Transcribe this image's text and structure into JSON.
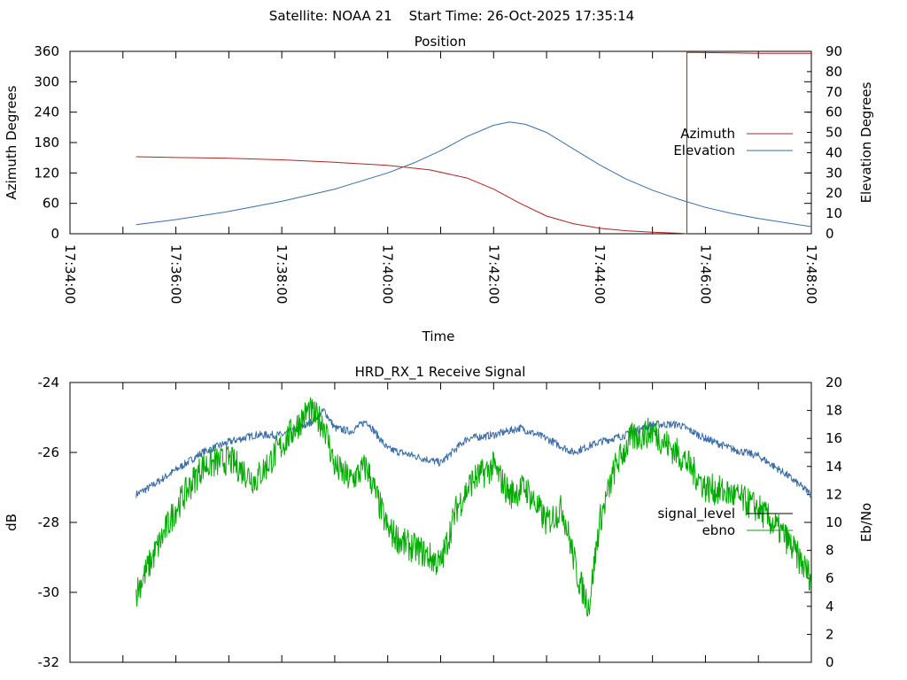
{
  "header": {
    "title": "Satellite: NOAA 21    Start Time: 26-Oct-2025 17:35:14"
  },
  "colors": {
    "azimuth": "#b22222",
    "elevation": "#3a6ea5",
    "signal_level": "#3a6ea5",
    "ebno": "#00aa00",
    "axes": "#000000"
  },
  "chart_data": [
    {
      "type": "line",
      "title": "Position",
      "xlabel": "Time",
      "ylabel": "Azimuth Degrees",
      "y2label": "Elevation Degrees",
      "xlim_minutes": [
        0,
        14
      ],
      "ylim": [
        0,
        360
      ],
      "y2lim": [
        0,
        90
      ],
      "yticks": [
        "0",
        "60",
        "120",
        "180",
        "240",
        "300",
        "360"
      ],
      "y2ticks": [
        "0",
        "10",
        "20",
        "30",
        "40",
        "50",
        "60",
        "70",
        "80",
        "90"
      ],
      "xtick_labels": [
        "17:34:00",
        "17:36:00",
        "17:38:00",
        "17:40:00",
        "17:42:00",
        "17:44:00",
        "17:46:00",
        "17:48:00"
      ],
      "legend_position": "right",
      "series": [
        {
          "name": "Azimuth",
          "axis": "y",
          "x": [
            1.25,
            2,
            3,
            4,
            5,
            6,
            6.8,
            7.5,
            8,
            8.5,
            9,
            9.5,
            10,
            10.5,
            11,
            11.5,
            11.65,
            11.65,
            11.65,
            12,
            12.5,
            13,
            14
          ],
          "values": [
            152,
            150.5,
            149,
            146,
            141,
            135,
            126,
            110,
            88,
            60,
            35,
            20,
            11,
            6,
            3,
            1,
            0,
            360,
            358,
            357.5,
            357,
            356,
            356
          ]
        },
        {
          "name": "Elevation",
          "axis": "y2",
          "x": [
            1.25,
            2,
            3,
            4,
            5,
            6,
            6.5,
            7,
            7.5,
            8,
            8.3,
            8.6,
            9,
            9.5,
            10,
            10.5,
            11,
            11.5,
            12,
            12.5,
            13,
            13.5,
            14
          ],
          "values": [
            4.5,
            7,
            11,
            16,
            22,
            30,
            35,
            41,
            48,
            53.5,
            55.2,
            54,
            50,
            42,
            34,
            27,
            21.5,
            17,
            13,
            10,
            7.5,
            5.5,
            3.5
          ]
        }
      ]
    },
    {
      "type": "line",
      "title": "HRD_RX_1 Receive Signal",
      "xlabel": "",
      "ylabel": "dB",
      "y2label": "Eb/No",
      "xlim_minutes": [
        0,
        14
      ],
      "ylim": [
        -32,
        -24
      ],
      "y2lim": [
        0,
        20
      ],
      "yticks": [
        "-32",
        "-30",
        "-28",
        "-26",
        "-24"
      ],
      "y2ticks": [
        "0",
        "2",
        "4",
        "6",
        "8",
        "10",
        "12",
        "14",
        "16",
        "18",
        "20"
      ],
      "legend_position": "right",
      "series": [
        {
          "name": "signal_level",
          "axis": "y",
          "x": [
            1.25,
            1.5,
            2,
            2.5,
            3,
            3.5,
            4,
            4.5,
            4.8,
            5,
            5.3,
            5.6,
            6,
            6.5,
            7,
            7.5,
            8,
            8.5,
            9,
            9.5,
            10,
            10.5,
            11,
            11.5,
            12,
            12.5,
            13,
            13.5,
            14
          ],
          "values": [
            -27.2,
            -27,
            -26.5,
            -26,
            -25.7,
            -25.5,
            -25.5,
            -25.2,
            -24.8,
            -25.3,
            -25.4,
            -25.1,
            -25.9,
            -26.1,
            -26.3,
            -25.6,
            -25.5,
            -25.3,
            -25.6,
            -26,
            -25.7,
            -25.5,
            -25.2,
            -25.2,
            -25.6,
            -25.9,
            -26.1,
            -26.6,
            -27.2
          ]
        },
        {
          "name": "ebno",
          "axis": "y2",
          "x": [
            1.25,
            1.5,
            1.75,
            2,
            2.5,
            3,
            3.5,
            4,
            4.5,
            4.8,
            5,
            5.3,
            5.6,
            6,
            6.3,
            6.6,
            7,
            7.3,
            7.6,
            8,
            8.3,
            8.6,
            9,
            9.3,
            9.6,
            9.8,
            10,
            10.3,
            10.6,
            11,
            11.3,
            11.6,
            12,
            12.5,
            13,
            13.5,
            14
          ],
          "values": [
            5,
            7,
            9,
            11,
            14,
            14.5,
            13,
            15.5,
            18,
            17,
            14,
            13,
            14,
            9.5,
            8.5,
            8,
            7,
            11,
            13,
            14,
            12,
            12.5,
            10,
            11,
            6,
            4,
            10,
            14,
            16,
            16.5,
            15.5,
            14.5,
            12.5,
            12,
            11,
            9,
            6
          ]
        }
      ]
    }
  ]
}
